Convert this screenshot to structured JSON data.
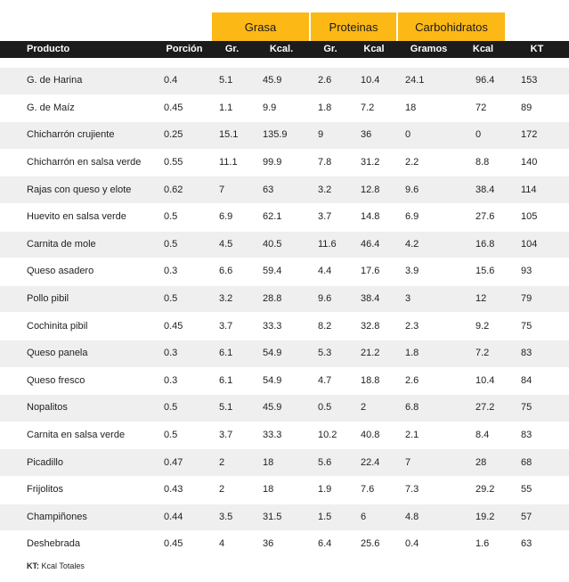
{
  "groups": {
    "grasa": "Grasa",
    "proteinas": "Proteinas",
    "carbohidratos": "Carbohidratos"
  },
  "columns": [
    "Producto",
    "Porción",
    "Gr.",
    "Kcal.",
    "Gr.",
    "Kcal",
    "Gramos",
    "Kcal",
    "KT"
  ],
  "rows": [
    [
      "G. de Harina",
      "0.4",
      "5.1",
      "45.9",
      "2.6",
      "10.4",
      "24.1",
      "96.4",
      "153"
    ],
    [
      "G. de Maíz",
      "0.45",
      "1.1",
      "9.9",
      "1.8",
      "7.2",
      "18",
      "72",
      "89"
    ],
    [
      "Chicharrón crujiente",
      "0.25",
      "15.1",
      "135.9",
      "9",
      "36",
      "0",
      "0",
      "172"
    ],
    [
      "Chicharrón en  salsa verde",
      "0.55",
      "11.1",
      "99.9",
      "7.8",
      "31.2",
      "2.2",
      "8.8",
      "140"
    ],
    [
      "Rajas con queso y elote",
      "0.62",
      "7",
      "63",
      "3.2",
      "12.8",
      "9.6",
      "38.4",
      "114"
    ],
    [
      "Huevito en salsa verde",
      "0.5",
      "6.9",
      "62.1",
      "3.7",
      "14.8",
      "6.9",
      "27.6",
      "105"
    ],
    [
      "Carnita de mole",
      "0.5",
      "4.5",
      "40.5",
      "11.6",
      "46.4",
      "4.2",
      "16.8",
      "104"
    ],
    [
      "Queso asadero",
      "0.3",
      "6.6",
      "59.4",
      "4.4",
      "17.6",
      "3.9",
      "15.6",
      "93"
    ],
    [
      "Pollo pibil",
      "0.5",
      "3.2",
      "28.8",
      "9.6",
      "38.4",
      "3",
      "12",
      "79"
    ],
    [
      "Cochinita pibil",
      "0.45",
      "3.7",
      "33.3",
      "8.2",
      "32.8",
      "2.3",
      "9.2",
      "75"
    ],
    [
      "Queso panela",
      "0.3",
      "6.1",
      "54.9",
      "5.3",
      "21.2",
      "1.8",
      "7.2",
      "83"
    ],
    [
      "Queso fresco",
      "0.3",
      "6.1",
      "54.9",
      "4.7",
      "18.8",
      "2.6",
      "10.4",
      "84"
    ],
    [
      "Nopalitos",
      "0.5",
      "5.1",
      "45.9",
      "0.5",
      "2",
      "6.8",
      "27.2",
      "75"
    ],
    [
      "Carnita en salsa verde",
      "0.5",
      "3.7",
      "33.3",
      "10.2",
      "40.8",
      "2.1",
      "8.4",
      "83"
    ],
    [
      "Picadillo",
      "0.47",
      "2",
      "18",
      "5.6",
      "22.4",
      "7",
      "28",
      "68"
    ],
    [
      "Frijolitos",
      "0.43",
      "2",
      "18",
      "1.9",
      "7.6",
      "7.3",
      "29.2",
      "55"
    ],
    [
      "Champiñones",
      "0.44",
      "3.5",
      "31.5",
      "1.5",
      "6",
      "4.8",
      "19.2",
      "57"
    ],
    [
      "Deshebrada",
      "0.45",
      "4",
      "36",
      "6.4",
      "25.6",
      "0.4",
      "1.6",
      "63"
    ]
  ],
  "footnote": {
    "key": "KT:",
    "text": " Kcal Totales"
  },
  "colors": {
    "group_header": "#fcb815",
    "column_header": "#1c1c1c",
    "stripe": "#efefef"
  }
}
